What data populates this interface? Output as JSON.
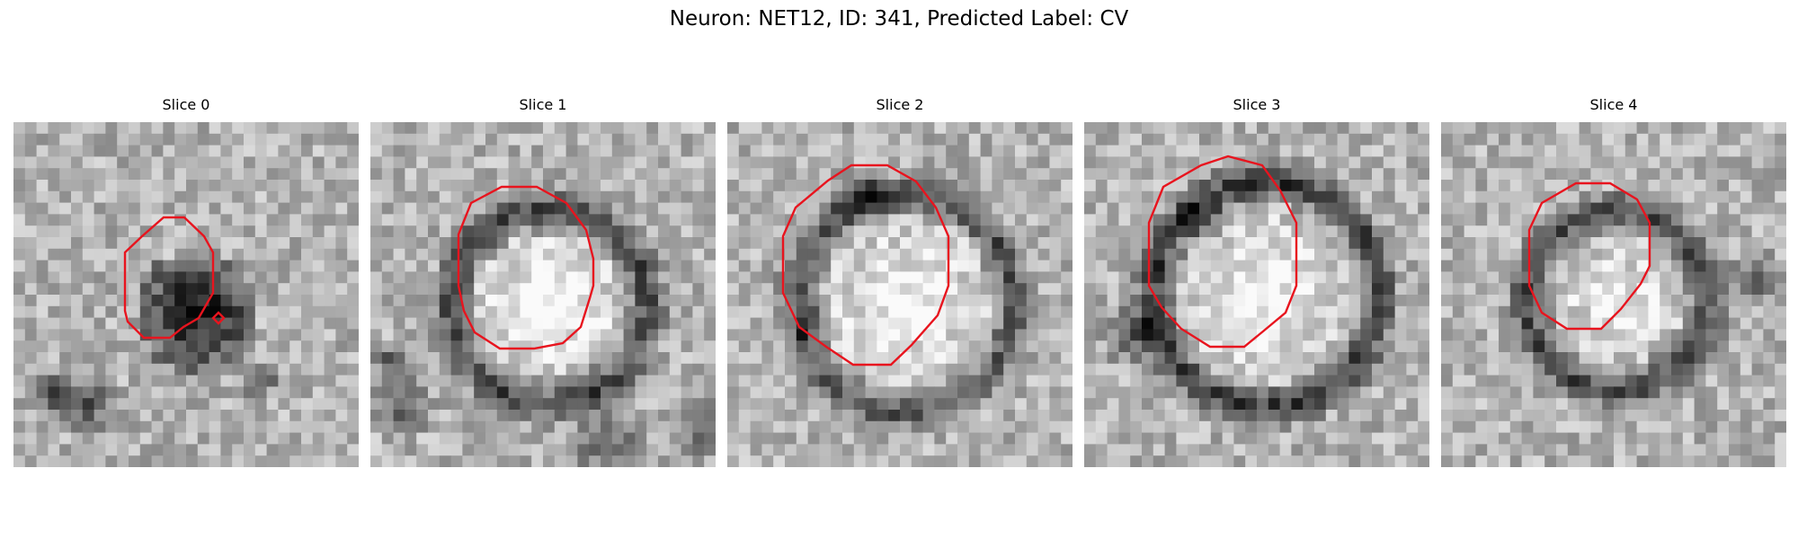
{
  "figure": {
    "title": "Neuron: NET12, ID: 341, Predicted Label: CV",
    "panels": [
      {
        "title": "Slice 0",
        "index": 0
      },
      {
        "title": "Slice 1",
        "index": 1
      },
      {
        "title": "Slice 2",
        "index": 2
      },
      {
        "title": "Slice 3",
        "index": 3
      },
      {
        "title": "Slice 4",
        "index": 4
      }
    ],
    "image": {
      "colormap": "grayscale",
      "grid": "30x30 pixel micrograph patch"
    },
    "overlay": {
      "shape": "segmentation contour",
      "color": "#e8141e"
    }
  }
}
